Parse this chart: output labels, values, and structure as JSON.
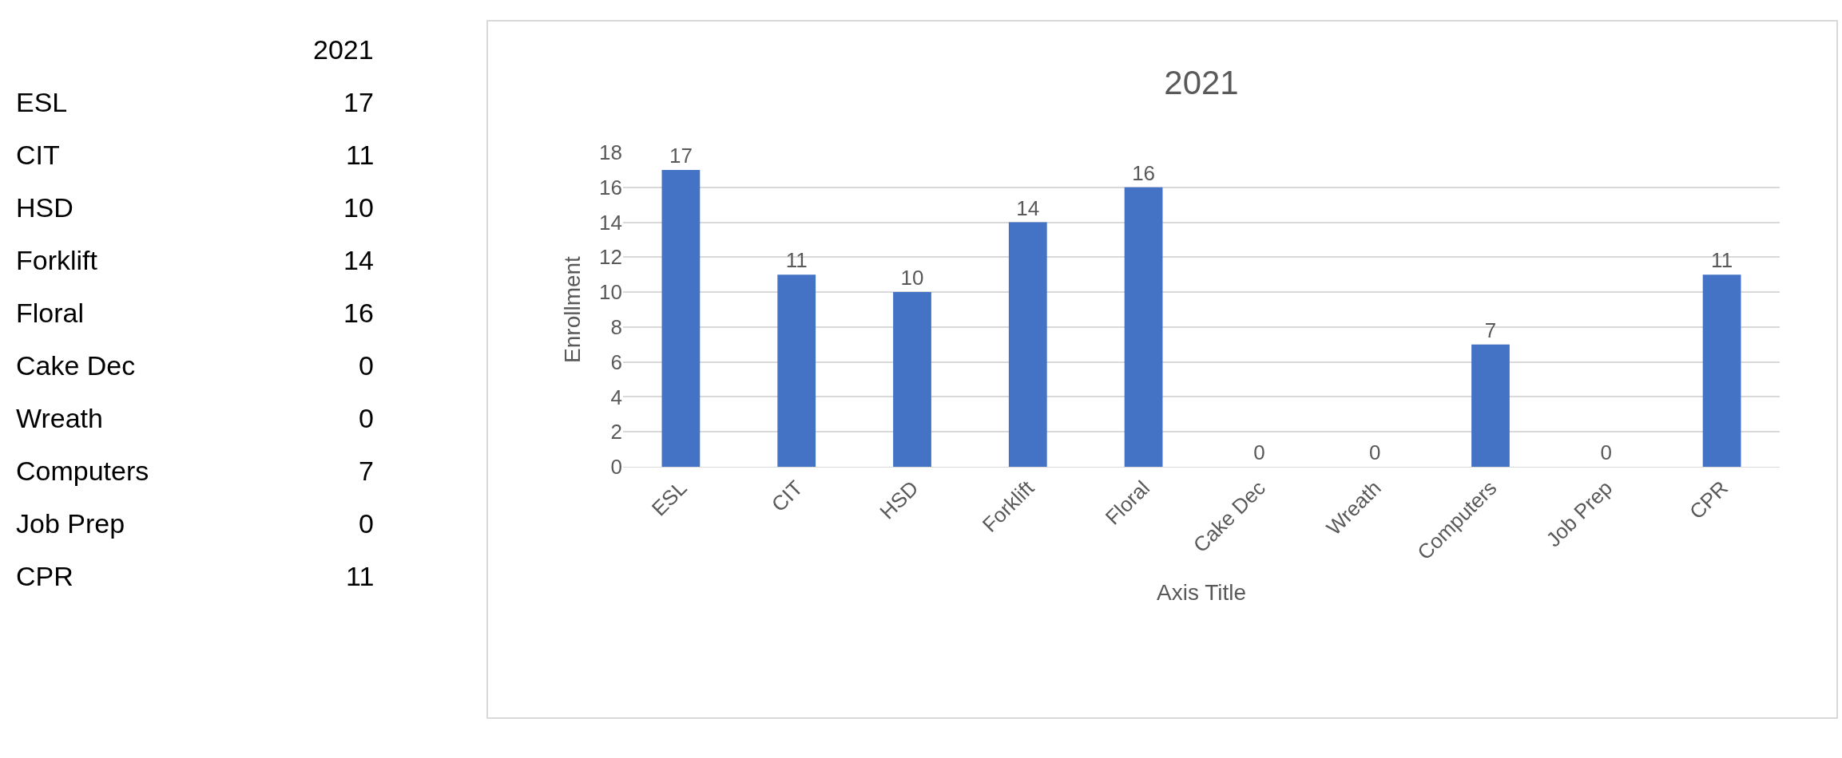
{
  "chart_data": {
    "type": "bar",
    "title": "2021",
    "xlabel": "Axis Title",
    "ylabel": "Enrollment",
    "categories": [
      "ESL",
      "CIT",
      "HSD",
      "Forklift",
      "Floral",
      "Cake Dec",
      "Wreath",
      "Computers",
      "Job Prep",
      "CPR"
    ],
    "values": [
      17,
      11,
      10,
      14,
      16,
      0,
      0,
      7,
      0,
      11
    ],
    "color": "#4472c4",
    "annotations": [
      "17",
      "11",
      "10",
      "14",
      "16",
      "0",
      "0",
      "7",
      "0",
      "11"
    ],
    "ylim": [
      0,
      18
    ],
    "yticks": [
      0,
      2,
      4,
      6,
      8,
      10,
      12,
      14,
      16,
      18
    ],
    "grid": "y",
    "data_labels": true
  }
}
